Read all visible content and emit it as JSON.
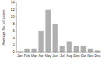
{
  "chart_data": {
    "type": "bar",
    "categories": [
      "Jan",
      "Feb",
      "Mar",
      "Apr",
      "May",
      "Jun",
      "Jul",
      "Aug",
      "Sep",
      "Oct",
      "Nov",
      "Dec"
    ],
    "values": [
      0.25,
      1.0,
      1.0,
      6.0,
      12.0,
      8.0,
      1.75,
      3.0,
      1.75,
      1.75,
      1.0,
      0.5
    ],
    "color": "#b0b0b0",
    "ylabel": "Average No. of cases",
    "ylim": [
      0,
      14
    ],
    "yticks": [
      0,
      2,
      4,
      6,
      8,
      10,
      12,
      14
    ],
    "grid": false
  }
}
